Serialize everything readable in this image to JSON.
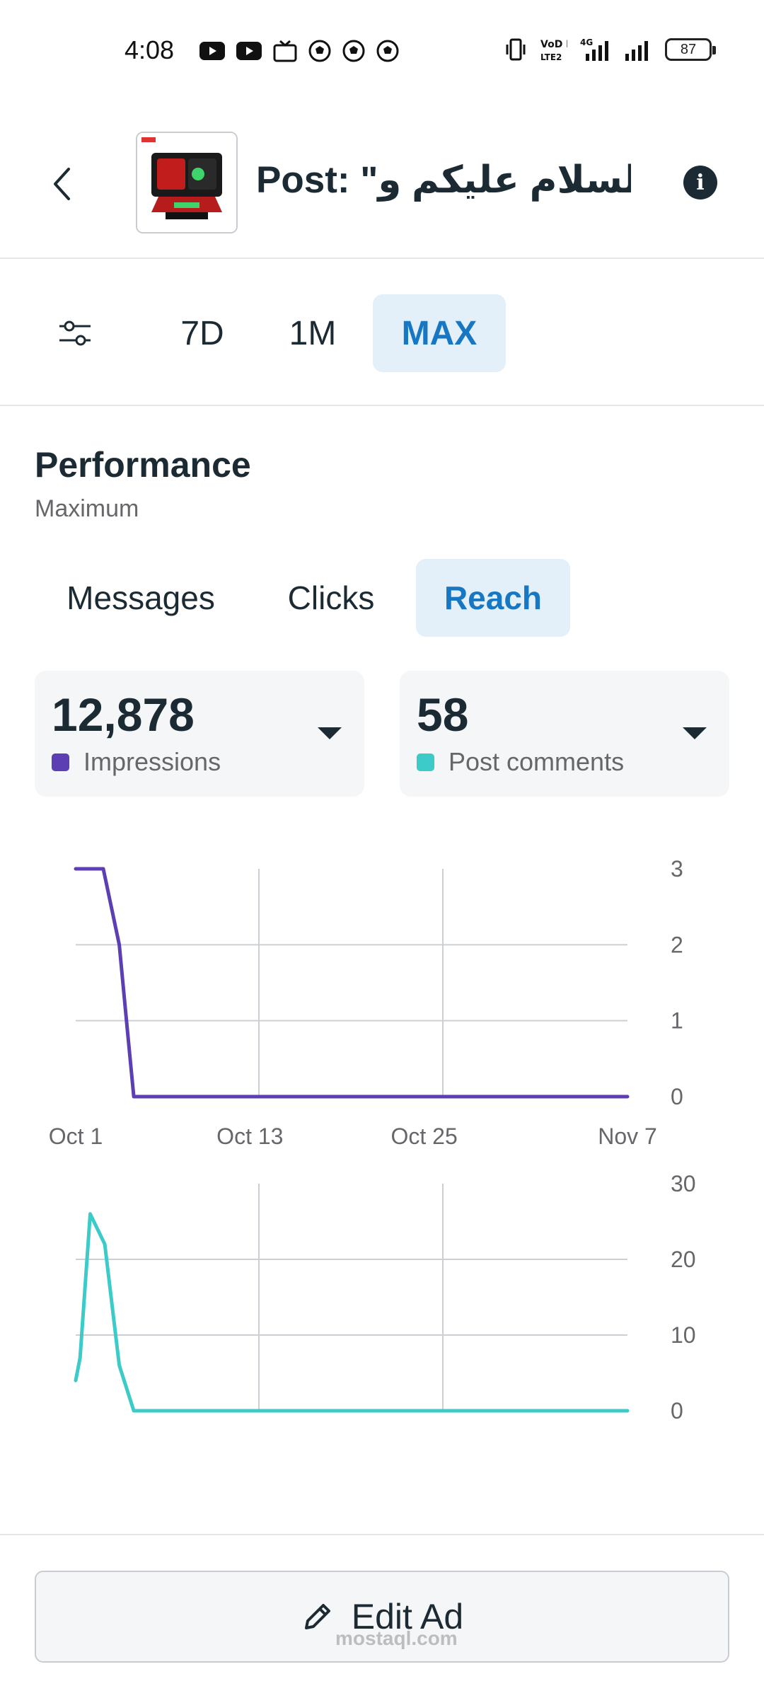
{
  "status_bar": {
    "time": "4:08",
    "battery": "87",
    "network_labels": [
      "VoD LTE2",
      "4G"
    ]
  },
  "header": {
    "title": "Post: \"السلام عليكم و...",
    "back_icon": "chevron-left-icon",
    "info_icon": "info-icon",
    "info_glyph": "i"
  },
  "date_range": {
    "filter_icon": "filter-sliders-icon",
    "tabs": [
      {
        "label": "7D",
        "active": false
      },
      {
        "label": "1M",
        "active": false
      },
      {
        "label": "MAX",
        "active": true
      }
    ]
  },
  "performance": {
    "title": "Performance",
    "subtitle": "Maximum",
    "metric_tabs": [
      {
        "label": "Messages",
        "active": false
      },
      {
        "label": "Clicks",
        "active": false
      },
      {
        "label": "Reach",
        "active": true
      }
    ],
    "cards": [
      {
        "value": "12,878",
        "label": "Impressions",
        "color": "#5b3fb3"
      },
      {
        "value": "58",
        "label": "Post comments",
        "color": "#3ccbc9"
      }
    ]
  },
  "chart_data": [
    {
      "type": "line",
      "series": [
        {
          "name": "Impressions",
          "color": "#5b3fb3",
          "x": [
            0,
            1.9,
            3,
            3.5,
            4,
            38
          ],
          "y": [
            3,
            3,
            2,
            1,
            0,
            0
          ]
        }
      ],
      "ylim": [
        0,
        3
      ],
      "yticks": [
        "3",
        "2",
        "1",
        "0"
      ],
      "xlim": [
        0,
        38
      ],
      "xticks": [
        {
          "x": 0,
          "label": "Oct 1"
        },
        {
          "x": 12,
          "label": "Oct 13"
        },
        {
          "x": 24,
          "label": "Oct 25"
        },
        {
          "x": 37,
          "label": "Nov 7"
        }
      ],
      "grid": true
    },
    {
      "type": "line",
      "series": [
        {
          "name": "Post comments",
          "color": "#3ccbc9",
          "x": [
            0,
            0.3,
            1,
            2,
            3,
            4,
            38
          ],
          "y": [
            4,
            7,
            26,
            22,
            6,
            0,
            0
          ]
        }
      ],
      "ylim": [
        0,
        30
      ],
      "yticks": [
        "30",
        "20",
        "10",
        "0"
      ],
      "xlim": [
        0,
        38
      ],
      "grid": true
    }
  ],
  "footer": {
    "edit_label": "Edit Ad",
    "edit_icon": "pencil-icon",
    "watermark": "mostaql.com"
  }
}
